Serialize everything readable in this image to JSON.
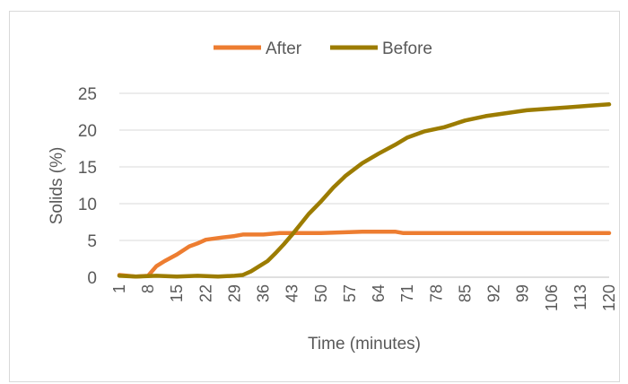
{
  "chart_data": {
    "type": "line",
    "title": "",
    "xlabel": "Time (minutes)",
    "ylabel": "Solids (%)",
    "ylim": [
      0,
      25
    ],
    "yticks": [
      0,
      5,
      10,
      15,
      20,
      25
    ],
    "xlim": [
      1,
      120
    ],
    "xtick_labels": [
      "1",
      "8",
      "15",
      "22",
      "29",
      "36",
      "43",
      "50",
      "57",
      "64",
      "71",
      "78",
      "85",
      "92",
      "99",
      "106",
      "113",
      "120"
    ],
    "grid": "horizontal",
    "legend_position": "top",
    "series": [
      {
        "name": "After",
        "color": "#ED7D31",
        "points": [
          [
            1,
            0.3
          ],
          [
            5,
            0.1
          ],
          [
            8,
            0.2
          ],
          [
            10,
            1.5
          ],
          [
            12,
            2.2
          ],
          [
            15,
            3.1
          ],
          [
            18,
            4.2
          ],
          [
            20,
            4.6
          ],
          [
            22,
            5.1
          ],
          [
            26,
            5.4
          ],
          [
            29,
            5.6
          ],
          [
            31,
            5.8
          ],
          [
            36,
            5.8
          ],
          [
            40,
            6.0
          ],
          [
            45,
            6.0
          ],
          [
            50,
            6.0
          ],
          [
            55,
            6.1
          ],
          [
            60,
            6.2
          ],
          [
            64,
            6.2
          ],
          [
            68,
            6.2
          ],
          [
            70,
            6.0
          ],
          [
            80,
            6.0
          ],
          [
            90,
            6.0
          ],
          [
            100,
            6.0
          ],
          [
            110,
            6.0
          ],
          [
            120,
            6.0
          ]
        ]
      },
      {
        "name": "Before",
        "color": "#9C7C00",
        "points": [
          [
            1,
            0.2
          ],
          [
            5,
            0.1
          ],
          [
            10,
            0.2
          ],
          [
            15,
            0.1
          ],
          [
            20,
            0.2
          ],
          [
            25,
            0.1
          ],
          [
            29,
            0.2
          ],
          [
            31,
            0.3
          ],
          [
            33,
            0.8
          ],
          [
            35,
            1.5
          ],
          [
            37,
            2.2
          ],
          [
            39,
            3.3
          ],
          [
            41,
            4.5
          ],
          [
            43,
            5.8
          ],
          [
            45,
            7.2
          ],
          [
            47,
            8.6
          ],
          [
            50,
            10.3
          ],
          [
            53,
            12.2
          ],
          [
            56,
            13.8
          ],
          [
            60,
            15.5
          ],
          [
            64,
            16.8
          ],
          [
            68,
            18.0
          ],
          [
            71,
            19.0
          ],
          [
            75,
            19.8
          ],
          [
            80,
            20.4
          ],
          [
            85,
            21.3
          ],
          [
            90,
            21.9
          ],
          [
            95,
            22.3
          ],
          [
            100,
            22.7
          ],
          [
            105,
            22.9
          ],
          [
            110,
            23.1
          ],
          [
            115,
            23.3
          ],
          [
            120,
            23.5
          ]
        ]
      }
    ]
  }
}
